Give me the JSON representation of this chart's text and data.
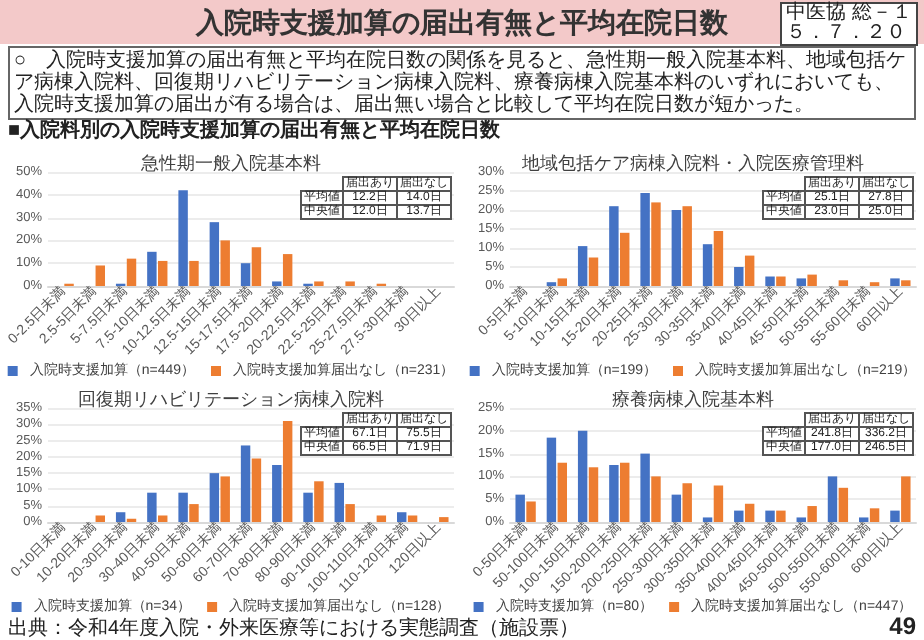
{
  "chart_data": [
    {
      "type": "other",
      "title": "入院時支援加算の届出有無と平均在院日数",
      "subtitle": "○　入院時支援加算の届出有無と平均在院日数の関係を見ると、急性期一般入院基本料、地域包括ケア病棟入院料、回復期リハビリテーション病棟入院料、療養病棟入院基本料のいずれにおいても、入院時支援加算の届出が有る場合は、届出無い場合と比較して平均在院日数が短かった。",
      "annotations": [
        "■入院料別の入院時支援加算の届出有無と平均在院日数",
        "出典：令和4年度入院・外来医療等における実態調査（施設票）",
        "中医協 総－１",
        "５．７．２０",
        "49"
      ]
    },
    {
      "type": "bar",
      "title": "急性期一般入院基本料",
      "categories": [
        "0-2.5日未満",
        "2.5-5日未満",
        "5-7.5日未満",
        "7.5-10日未満",
        "10-12.5日未満",
        "12.5-15日未満",
        "15-17.5日未満",
        "17.5-20日未満",
        "20-22.5日未満",
        "22.5-25日未満",
        "25-27.5日未満",
        "27.5-30日未満",
        "30日以上"
      ],
      "series": [
        {
          "name": "入院時支援加算（n=449）",
          "color": "#4472c4",
          "values": [
            0,
            0,
            1,
            15,
            42,
            28,
            10,
            2,
            1,
            0,
            0,
            0,
            0
          ]
        },
        {
          "name": "入院時支援加算届出なし（n=231）",
          "color": "#ed7d31",
          "values": [
            1,
            9,
            12,
            11,
            11,
            20,
            17,
            14,
            2,
            2,
            1,
            0,
            0
          ]
        }
      ],
      "ylim": [
        0,
        50
      ],
      "yticks": [
        {
          "value": 0,
          "label": "0%"
        },
        {
          "value": 10,
          "label": "10%"
        },
        {
          "value": 20,
          "label": "20%"
        },
        {
          "value": 30,
          "label": "30%"
        },
        {
          "value": 40,
          "label": "40%"
        },
        {
          "value": 50,
          "label": "50%"
        }
      ],
      "grid": "y",
      "legend": "bottom",
      "annotations": [
        "届出あり",
        "届出なし",
        "平均値",
        "12.2日",
        "14.0日",
        "中央値",
        "12.0日",
        "13.7日"
      ]
    },
    {
      "type": "bar",
      "title": "地域包括ケア病棟入院料・入院医療管理料",
      "categories": [
        "0-5日未満",
        "5-10日未満",
        "10-15日未満",
        "15-20日未満",
        "20-25日未満",
        "25-30日未満",
        "30-35日未満",
        "35-40日未満",
        "40-45日未満",
        "45-50日未満",
        "50-55日未満",
        "55-60日未満",
        "60日以上"
      ],
      "series": [
        {
          "name": "入院時支援加算（n=199）",
          "color": "#4472c4",
          "values": [
            0,
            1,
            10.5,
            21,
            24.5,
            20,
            11,
            5,
            2.5,
            2,
            0,
            0,
            2
          ]
        },
        {
          "name": "入院時支援加算届出なし（n=219）",
          "color": "#ed7d31",
          "values": [
            0,
            2,
            7.5,
            14,
            22,
            21,
            14.5,
            8,
            2.5,
            3,
            1.5,
            1,
            1.5
          ]
        }
      ],
      "ylim": [
        0,
        30
      ],
      "yticks": [
        {
          "value": 0,
          "label": "0%"
        },
        {
          "value": 5,
          "label": "5%"
        },
        {
          "value": 10,
          "label": "10%"
        },
        {
          "value": 15,
          "label": "15%"
        },
        {
          "value": 20,
          "label": "20%"
        },
        {
          "value": 25,
          "label": "25%"
        },
        {
          "value": 30,
          "label": "30%"
        }
      ],
      "grid": "y",
      "legend": "bottom",
      "annotations": [
        "届出あり",
        "届出なし",
        "平均値",
        "25.1日",
        "27.8日",
        "中央値",
        "23.0日",
        "25.0日"
      ]
    },
    {
      "type": "bar",
      "title": "回復期リハビリテーション病棟入院料",
      "categories": [
        "0-10日未満",
        "10-20日未満",
        "20-30日未満",
        "30-40日未満",
        "40-50日未満",
        "50-60日未満",
        "60-70日未満",
        "70-80日未満",
        "80-90日未満",
        "90-100日未満",
        "100-110日未満",
        "110-120日未満",
        "120日以上"
      ],
      "series": [
        {
          "name": "入院時支援加算（n=34）",
          "color": "#4472c4",
          "values": [
            0,
            0,
            3,
            9,
            9,
            15,
            23.5,
            17.5,
            9,
            12,
            0,
            3,
            0
          ]
        },
        {
          "name": "入院時支援加算届出なし（n=128）",
          "color": "#ed7d31",
          "values": [
            0,
            2,
            1,
            2,
            5.5,
            14,
            19.5,
            31,
            12.5,
            5.5,
            2,
            2,
            1.5
          ]
        }
      ],
      "ylim": [
        0,
        35
      ],
      "yticks": [
        {
          "value": 0,
          "label": "0%"
        },
        {
          "value": 5,
          "label": "5%"
        },
        {
          "value": 10,
          "label": "10%"
        },
        {
          "value": 15,
          "label": "15%"
        },
        {
          "value": 20,
          "label": "20%"
        },
        {
          "value": 25,
          "label": "25%"
        },
        {
          "value": 30,
          "label": "30%"
        },
        {
          "value": 35,
          "label": "35%"
        }
      ],
      "grid": "y",
      "legend": "bottom",
      "annotations": [
        "届出あり",
        "届出なし",
        "平均値",
        "67.1日",
        "75.5日",
        "中央値",
        "66.5日",
        "71.9日"
      ]
    },
    {
      "type": "bar",
      "title": "療養病棟入院基本料",
      "categories": [
        "0-50日未満",
        "50-100日未満",
        "100-150日未満",
        "150-200日未満",
        "200-250日未満",
        "250-300日未満",
        "300-350日未満",
        "350-400日未満",
        "400-450日未満",
        "450-500日未満",
        "500-550日未満",
        "550-600日未満",
        "600日以上"
      ],
      "series": [
        {
          "name": "入院時支援加算（n=80）",
          "color": "#4472c4",
          "values": [
            6,
            18.5,
            20,
            12.5,
            15,
            6,
            1,
            2.5,
            2.5,
            1,
            10,
            1,
            2.5
          ]
        },
        {
          "name": "入院時支援加算届出なし（n=447）",
          "color": "#ed7d31",
          "values": [
            4.5,
            13,
            12,
            13,
            10,
            8.5,
            8,
            4,
            2.5,
            3.5,
            7.5,
            3,
            10
          ]
        }
      ],
      "ylim": [
        0,
        25
      ],
      "yticks": [
        {
          "value": 0,
          "label": "0%"
        },
        {
          "value": 5,
          "label": "5%"
        },
        {
          "value": 10,
          "label": "10%"
        },
        {
          "value": 15,
          "label": "15%"
        },
        {
          "value": 20,
          "label": "20%"
        },
        {
          "value": 25,
          "label": "25%"
        }
      ],
      "grid": "y",
      "legend": "bottom",
      "annotations": [
        "届出あり",
        "届出なし",
        "平均値",
        "241.8日",
        "336.2日",
        "中央値",
        "177.0日",
        "246.5日"
      ]
    }
  ]
}
